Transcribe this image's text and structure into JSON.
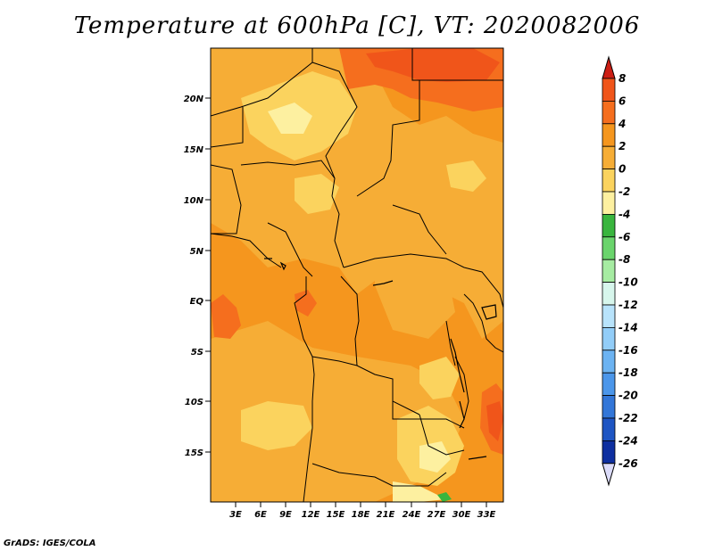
{
  "title": "Temperature at 600hPa [C], VT: 2020082006",
  "credit": "GrADS: IGES/COLA",
  "lat_ticks": [
    "20N",
    "15N",
    "10N",
    "5N",
    "EQ",
    "5S",
    "10S",
    "15S"
  ],
  "lon_ticks": [
    "3E",
    "6E",
    "9E",
    "12E",
    "15E",
    "18E",
    "21E",
    "24E",
    "27E",
    "30E",
    "33E"
  ],
  "colorbar": {
    "labels": [
      "8",
      "6",
      "4",
      "2",
      "0",
      "-2",
      "-4",
      "-6",
      "-8",
      "-10",
      "-12",
      "-14",
      "-16",
      "-18",
      "-20",
      "-22",
      "-24",
      "-26"
    ],
    "colors": [
      "#e33a1a",
      "#f0551a",
      "#f56e1e",
      "#f5961e",
      "#f6ad36",
      "#fbd35e",
      "#fdf0a0",
      "#39b53e",
      "#6ad46c",
      "#a6eca2",
      "#d7f6ec",
      "#b8e3fb",
      "#92cdf8",
      "#6cb3f2",
      "#4b96ea",
      "#3276d8",
      "#1e55c3",
      "#0e2fa0",
      "#08086b"
    ],
    "top_arrow_color": "#cc1e14",
    "bottom_arrow_color": "#dcdcfa"
  },
  "fill_colors": {
    "base": "#f5961e",
    "warm": "#f6ad36",
    "cool": "#fbd35e",
    "cooler": "#fdf0a0",
    "hot": "#f56e1e",
    "hotter": "#f0551a",
    "cold_spot": "#39b53e"
  }
}
